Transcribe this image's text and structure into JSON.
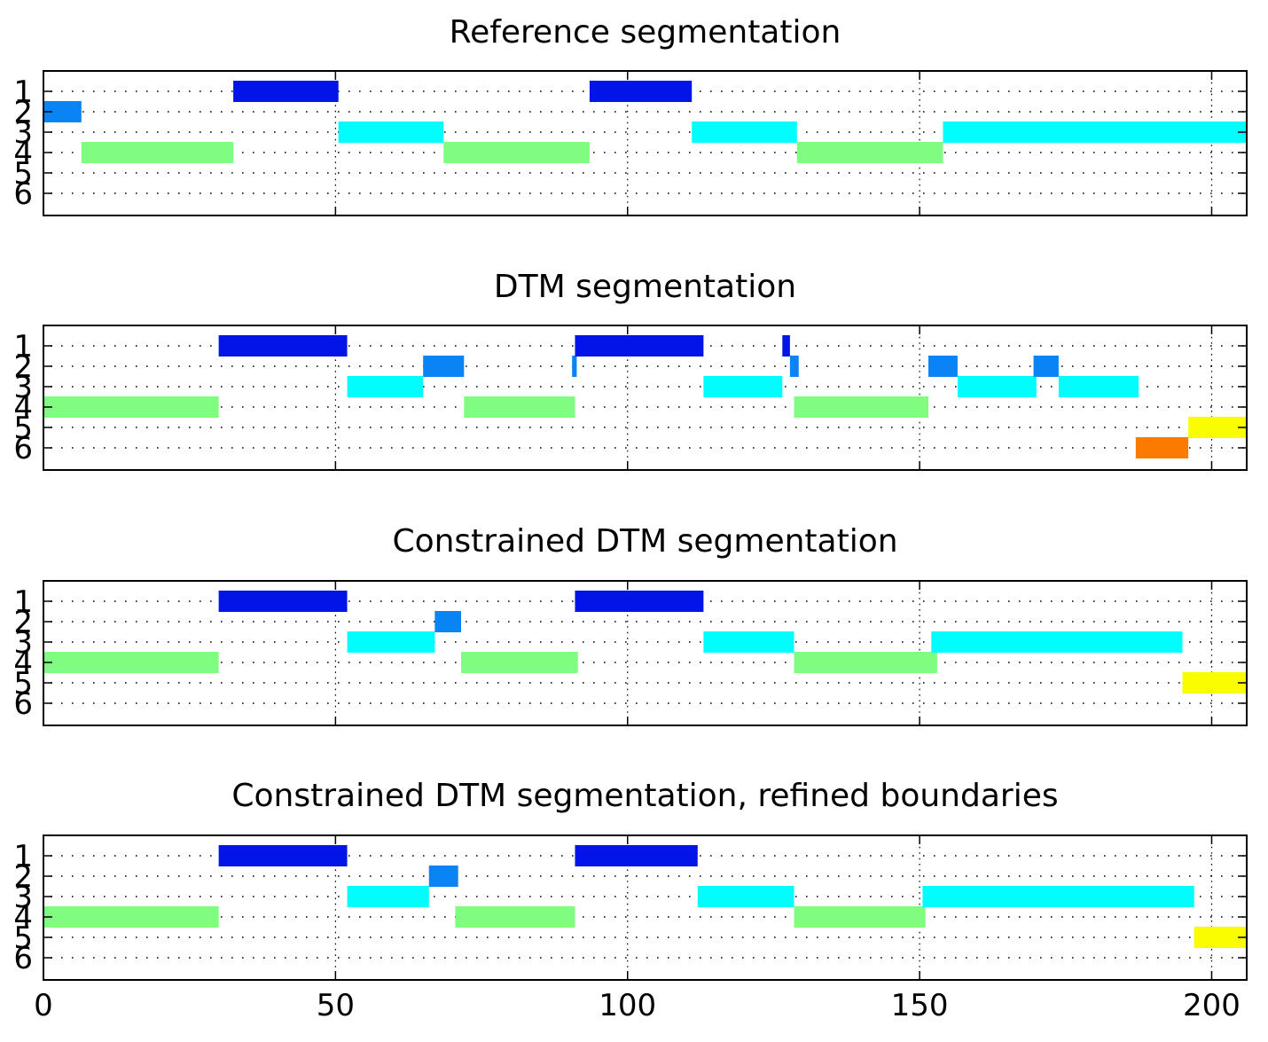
{
  "chart_data": [
    {
      "type": "bar",
      "title": "Reference segmentation",
      "xlim": [
        0,
        206
      ],
      "ylim": [
        0.5,
        6.5
      ],
      "y_reversed": true,
      "yticks": [
        "1",
        "2",
        "3",
        "4",
        "5",
        "6"
      ],
      "grid": true,
      "show_xticklabels": false,
      "segments": [
        {
          "label": 1,
          "start": 32.5,
          "end": 50.5
        },
        {
          "label": 2,
          "start": 0,
          "end": 6.5
        },
        {
          "label": 4,
          "start": 6.5,
          "end": 32.5
        },
        {
          "label": 3,
          "start": 50.5,
          "end": 68.5
        },
        {
          "label": 4,
          "start": 68.5,
          "end": 93.5
        },
        {
          "label": 1,
          "start": 93.5,
          "end": 111
        },
        {
          "label": 3,
          "start": 111,
          "end": 129
        },
        {
          "label": 4,
          "start": 129,
          "end": 154
        },
        {
          "label": 3,
          "start": 154,
          "end": 206
        }
      ]
    },
    {
      "type": "bar",
      "title": "DTM segmentation",
      "xlim": [
        0,
        206
      ],
      "ylim": [
        0.5,
        6.5
      ],
      "y_reversed": true,
      "yticks": [
        "1",
        "2",
        "3",
        "4",
        "5",
        "6"
      ],
      "grid": true,
      "show_xticklabels": false,
      "segments": [
        {
          "label": 4,
          "start": 0,
          "end": 30
        },
        {
          "label": 1,
          "start": 30,
          "end": 52
        },
        {
          "label": 3,
          "start": 52,
          "end": 65
        },
        {
          "label": 2,
          "start": 65,
          "end": 72
        },
        {
          "label": 4,
          "start": 72,
          "end": 91
        },
        {
          "label": 2,
          "start": 90.5,
          "end": 91.3
        },
        {
          "label": 1,
          "start": 91,
          "end": 113
        },
        {
          "label": 3,
          "start": 113,
          "end": 126.5
        },
        {
          "label": 1,
          "start": 126.5,
          "end": 127.8
        },
        {
          "label": 2,
          "start": 127.8,
          "end": 129.3
        },
        {
          "label": 4,
          "start": 128.5,
          "end": 151.5
        },
        {
          "label": 2,
          "start": 151.5,
          "end": 156.5
        },
        {
          "label": 3,
          "start": 156.5,
          "end": 170
        },
        {
          "label": 2,
          "start": 169.5,
          "end": 173.8
        },
        {
          "label": 3,
          "start": 173.8,
          "end": 187.5
        },
        {
          "label": 6,
          "start": 187,
          "end": 196
        },
        {
          "label": 5,
          "start": 196,
          "end": 206
        }
      ]
    },
    {
      "type": "bar",
      "title": "Constrained DTM segmentation",
      "xlim": [
        0,
        206
      ],
      "ylim": [
        0.5,
        6.5
      ],
      "y_reversed": true,
      "yticks": [
        "1",
        "2",
        "3",
        "4",
        "5",
        "6"
      ],
      "grid": true,
      "show_xticklabels": false,
      "segments": [
        {
          "label": 4,
          "start": 0,
          "end": 30
        },
        {
          "label": 1,
          "start": 30,
          "end": 52
        },
        {
          "label": 3,
          "start": 52,
          "end": 67
        },
        {
          "label": 2,
          "start": 67,
          "end": 71.5
        },
        {
          "label": 4,
          "start": 71.5,
          "end": 91.5
        },
        {
          "label": 1,
          "start": 91,
          "end": 113
        },
        {
          "label": 3,
          "start": 113,
          "end": 128.5
        },
        {
          "label": 4,
          "start": 128.5,
          "end": 153
        },
        {
          "label": 3,
          "start": 152,
          "end": 195
        },
        {
          "label": 5,
          "start": 195,
          "end": 206
        }
      ]
    },
    {
      "type": "bar",
      "title": "Constrained DTM segmentation, refined boundaries",
      "xlim": [
        0,
        206
      ],
      "ylim": [
        0.5,
        6.5
      ],
      "y_reversed": true,
      "yticks": [
        "1",
        "2",
        "3",
        "4",
        "5",
        "6"
      ],
      "grid": true,
      "show_xticklabels": true,
      "xticks": [
        "0",
        "50",
        "100",
        "150",
        "200"
      ],
      "segments": [
        {
          "label": 4,
          "start": 0,
          "end": 30
        },
        {
          "label": 1,
          "start": 30,
          "end": 52
        },
        {
          "label": 3,
          "start": 52,
          "end": 66
        },
        {
          "label": 2,
          "start": 66,
          "end": 71
        },
        {
          "label": 4,
          "start": 70.5,
          "end": 91
        },
        {
          "label": 1,
          "start": 91,
          "end": 112
        },
        {
          "label": 3,
          "start": 112,
          "end": 128.5
        },
        {
          "label": 4,
          "start": 128.5,
          "end": 151
        },
        {
          "label": 3,
          "start": 150.5,
          "end": 197
        },
        {
          "label": 5,
          "start": 197,
          "end": 206
        }
      ]
    }
  ],
  "label_colors": {
    "1": "#0314e8",
    "2": "#0a83f5",
    "3": "#00fdff",
    "4": "#80fd80",
    "5": "#fafd00",
    "6": "#fb7b00"
  }
}
